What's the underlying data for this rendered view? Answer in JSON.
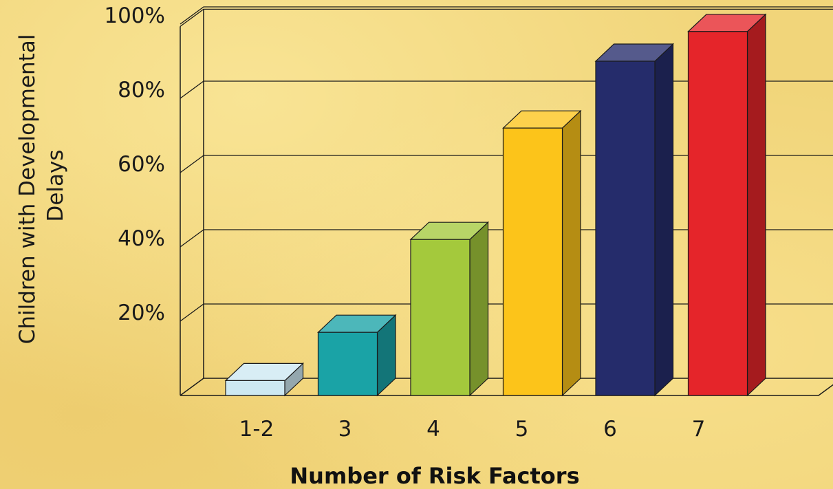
{
  "chart_data": {
    "type": "bar",
    "title": "",
    "xlabel": "Number of Risk Factors",
    "ylabel_lines": [
      "Children with Developmental",
      "Delays"
    ],
    "categories": [
      "1-2",
      "3",
      "4",
      "5",
      "6",
      "7"
    ],
    "values": [
      4,
      17,
      42,
      72,
      90,
      98
    ],
    "yticks": [
      "20%",
      "40%",
      "60%",
      "80%",
      "100%"
    ],
    "ytick_values": [
      20,
      40,
      60,
      80,
      100
    ],
    "ylim": [
      0,
      100
    ],
    "grid": true,
    "bar_colors": [
      "#cde8f2",
      "#1aa3a6",
      "#a4c93c",
      "#fcc41a",
      "#252c6b",
      "#e5252a"
    ],
    "background_color": "#f1d57a"
  }
}
